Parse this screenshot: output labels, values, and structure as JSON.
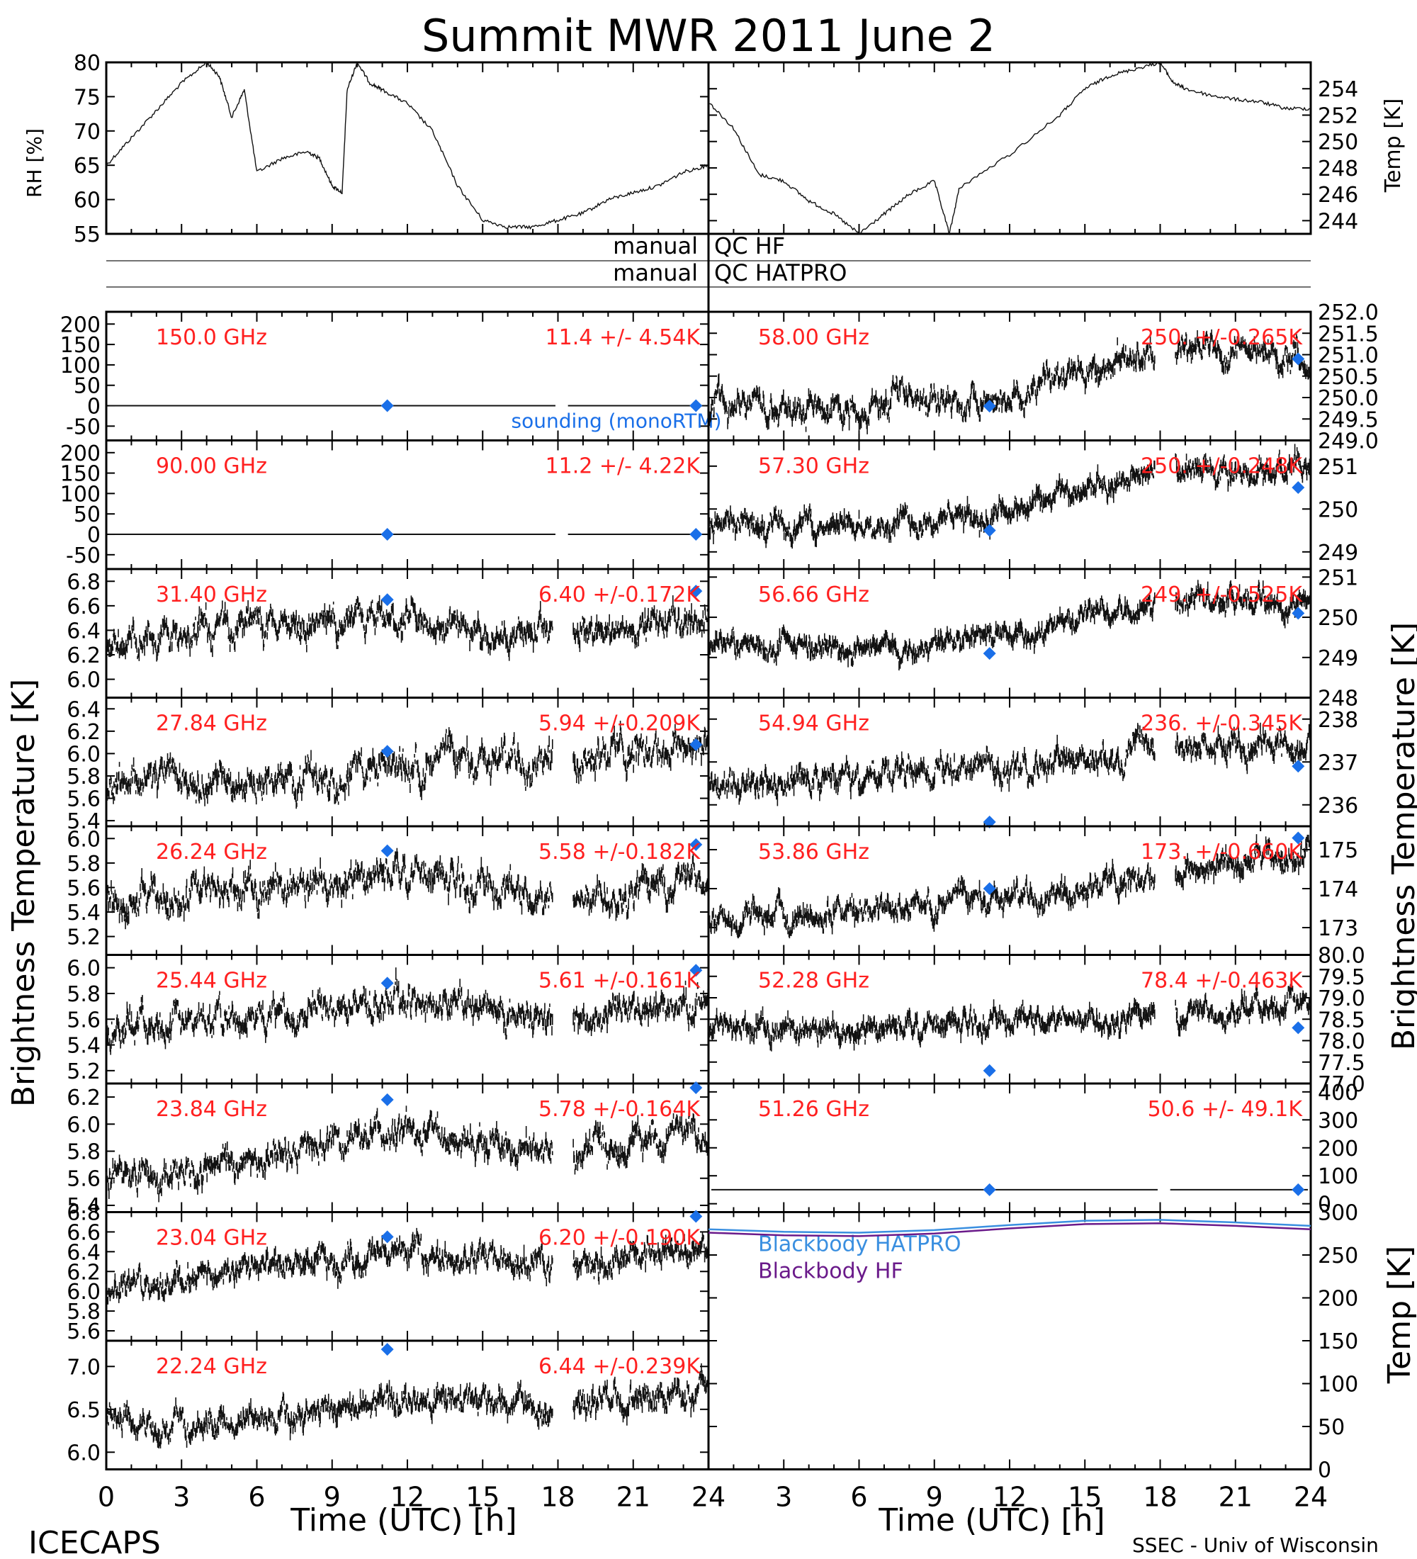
{
  "title": "Summit MWR 2011 June  2",
  "footer": {
    "left": "ICECAPS",
    "right": "SSEC - Univ of Wisconsin"
  },
  "axis_labels": {
    "time": "Time (UTC) [h]",
    "brightness_left": "Brightness Temperature [K]",
    "brightness_right": "Brightness Temperature [K]",
    "rh": "RH [%]",
    "temp_top": "Temp [K]",
    "temp_bottom": "Temp [K]"
  },
  "qc": {
    "left_hf": "manual",
    "right_hf": "QC HF",
    "left_hatpro": "manual",
    "right_hatpro": "QC HATPRO"
  },
  "colors": {
    "label_red": "#ff2020",
    "sounding_blue": "#1a6fe8",
    "hatpro_line": "#3a8fe0",
    "hf_line": "#6a1a8a",
    "data_black": "#111111"
  },
  "chart_data": [
    {
      "type": "scatter",
      "panel": "rh",
      "ylabel": "RH [%]",
      "xlim": [
        0,
        24
      ],
      "ylim": [
        55,
        80
      ],
      "yticks": [
        "55",
        "60",
        "65",
        "70",
        "75",
        "80"
      ],
      "x": [
        0,
        1,
        2,
        3,
        4,
        4.5,
        5,
        5.5,
        6,
        7,
        8,
        8.5,
        9,
        9.4,
        9.6,
        10,
        10.5,
        11,
        12,
        13,
        14,
        15,
        16,
        17,
        18,
        19,
        20,
        21,
        22,
        23,
        24
      ],
      "y": [
        65,
        69,
        73,
        77,
        80,
        78,
        72,
        76,
        64,
        66,
        67,
        66,
        62,
        61,
        76,
        80,
        77,
        76,
        74,
        70,
        62,
        57,
        56,
        56,
        57,
        58,
        60,
        61,
        62,
        64,
        65
      ]
    },
    {
      "type": "scatter",
      "panel": "temp",
      "ylabel": "Temp [K]",
      "xlim": [
        0,
        24
      ],
      "ylim": [
        243,
        256
      ],
      "yticks": [
        "244",
        "246",
        "248",
        "250",
        "252",
        "254"
      ],
      "x": [
        0,
        1,
        2,
        3,
        4,
        5,
        6,
        7,
        8,
        9,
        9.6,
        10,
        12,
        14,
        15,
        16,
        17,
        18,
        18.5,
        19,
        20,
        21,
        22,
        23,
        24
      ],
      "y": [
        253,
        251,
        247.5,
        247,
        245.5,
        244.5,
        243,
        244.5,
        246,
        247,
        243,
        246.5,
        249,
        252,
        254,
        255,
        255.5,
        256,
        254.5,
        254,
        253.5,
        253.2,
        253,
        252.5,
        252.5
      ]
    },
    {
      "type": "scatter",
      "panel": "left",
      "row": 0,
      "label": "150.0 GHz",
      "stat": "11.4 +/-  4.54K",
      "ylim": [
        -85,
        230
      ],
      "yticks": [
        "-50",
        "0",
        "50",
        "100",
        "150",
        "200"
      ],
      "tickvals": [
        -50,
        0,
        50,
        100,
        150,
        200
      ],
      "base": 0,
      "noise": 0,
      "trend": [
        0,
        0,
        0,
        0,
        0
      ],
      "sounding": [
        {
          "x": 11.2,
          "y": 0
        },
        {
          "x": 23.5,
          "y": 0
        }
      ],
      "legend": "sounding (monoRTM)"
    },
    {
      "type": "scatter",
      "panel": "left",
      "row": 1,
      "label": "90.00 GHz",
      "stat": "11.2 +/-  4.22K",
      "ylim": [
        -85,
        230
      ],
      "yticks": [
        "-50",
        "0",
        "50",
        "100",
        "150",
        "200"
      ],
      "tickvals": [
        -50,
        0,
        50,
        100,
        150,
        200
      ],
      "base": 0,
      "noise": 0,
      "trend": [
        0,
        0,
        0,
        0,
        0
      ],
      "sounding": [
        {
          "x": 11.2,
          "y": 0
        },
        {
          "x": 23.5,
          "y": 0
        }
      ]
    },
    {
      "type": "scatter",
      "panel": "left",
      "row": 2,
      "label": "31.40 GHz",
      "stat": "6.40 +/-0.172K",
      "ylim": [
        5.85,
        6.9
      ],
      "yticks": [
        "6.0",
        "6.2",
        "6.4",
        "6.6",
        "6.8"
      ],
      "tickvals": [
        6.0,
        6.2,
        6.4,
        6.6,
        6.8
      ],
      "base": 6.4,
      "noise": 0.14,
      "trend": [
        6.3,
        6.45,
        6.45,
        6.35,
        6.5
      ],
      "sounding": [
        {
          "x": 11.2,
          "y": 6.65
        },
        {
          "x": 23.5,
          "y": 6.72
        }
      ]
    },
    {
      "type": "scatter",
      "panel": "left",
      "row": 3,
      "label": "27.84 GHz",
      "stat": "5.94 +/-0.209K",
      "ylim": [
        5.35,
        6.5
      ],
      "yticks": [
        "5.4",
        "5.6",
        "5.8",
        "6.0",
        "6.2",
        "6.4"
      ],
      "tickvals": [
        5.4,
        5.6,
        5.8,
        6.0,
        6.2,
        6.4
      ],
      "base": 5.94,
      "noise": 0.17,
      "trend": [
        5.8,
        5.75,
        5.9,
        6.0,
        6.1
      ],
      "sounding": [
        {
          "x": 11.2,
          "y": 6.02
        },
        {
          "x": 23.5,
          "y": 6.08
        }
      ]
    },
    {
      "type": "scatter",
      "panel": "left",
      "row": 4,
      "label": "26.24 GHz",
      "stat": "5.58 +/-0.182K",
      "ylim": [
        5.05,
        6.1
      ],
      "yticks": [
        "5.2",
        "5.4",
        "5.6",
        "5.8",
        "6.0"
      ],
      "tickvals": [
        5.2,
        5.4,
        5.6,
        5.8,
        6.0
      ],
      "base": 5.58,
      "noise": 0.15,
      "trend": [
        5.45,
        5.6,
        5.75,
        5.5,
        5.7
      ],
      "sounding": [
        {
          "x": 11.2,
          "y": 5.9
        },
        {
          "x": 23.5,
          "y": 5.95
        }
      ]
    },
    {
      "type": "scatter",
      "panel": "left",
      "row": 5,
      "label": "25.44 GHz",
      "stat": "5.61 +/-0.161K",
      "ylim": [
        5.1,
        6.1
      ],
      "yticks": [
        "5.2",
        "5.4",
        "5.6",
        "5.8",
        "6.0"
      ],
      "tickvals": [
        5.2,
        5.4,
        5.6,
        5.8,
        6.0
      ],
      "base": 5.61,
      "noise": 0.13,
      "trend": [
        5.55,
        5.6,
        5.75,
        5.6,
        5.7
      ],
      "sounding": [
        {
          "x": 11.2,
          "y": 5.88
        },
        {
          "x": 23.5,
          "y": 5.98
        }
      ]
    },
    {
      "type": "scatter",
      "panel": "left",
      "row": 6,
      "label": "23.84 GHz",
      "stat": "5.78 +/-0.164K",
      "ylim": [
        5.35,
        6.3
      ],
      "yticks": [
        "5.4",
        "5.6",
        "5.8",
        "6.0",
        "6.2"
      ],
      "tickvals": [
        5.4,
        5.6,
        5.8,
        6.0,
        6.2
      ],
      "base": 5.78,
      "noise": 0.12,
      "trend": [
        5.6,
        5.75,
        5.95,
        5.8,
        5.95
      ],
      "sounding": [
        {
          "x": 11.2,
          "y": 6.18
        },
        {
          "x": 23.5,
          "y": 6.3
        }
      ]
    },
    {
      "type": "scatter",
      "panel": "left",
      "row": 7,
      "label": "23.04 GHz",
      "stat": "6.20 +/-0.190K",
      "ylim": [
        5.5,
        6.8
      ],
      "yticks": [
        "5.6",
        "5.8",
        "6.0",
        "6.2",
        "6.4",
        "6.6",
        "6.8"
      ],
      "tickvals": [
        5.6,
        5.8,
        6.0,
        6.2,
        6.4,
        6.6,
        6.8
      ],
      "base": 6.2,
      "noise": 0.15,
      "trend": [
        6.05,
        6.2,
        6.4,
        6.25,
        6.45
      ],
      "sounding": [
        {
          "x": 11.2,
          "y": 6.55
        },
        {
          "x": 23.5,
          "y": 6.8
        }
      ]
    },
    {
      "type": "scatter",
      "panel": "left",
      "row": 8,
      "label": "22.24 GHz",
      "stat": "6.44 +/-0.239K",
      "ylim": [
        5.8,
        7.3
      ],
      "yticks": [
        "6.0",
        "6.5",
        "7.0"
      ],
      "tickvals": [
        6.0,
        6.5,
        7.0
      ],
      "base": 6.44,
      "noise": 0.18,
      "trend": [
        6.3,
        6.35,
        6.65,
        6.5,
        6.7
      ],
      "sounding": [
        {
          "x": 11.2,
          "y": 7.2
        }
      ]
    },
    {
      "type": "scatter",
      "panel": "right",
      "row": 0,
      "label": "58.00 GHz",
      "stat": "250. +/-0.265K",
      "ylim": [
        249.0,
        252.0
      ],
      "yticks": [
        "249.0",
        "249.5",
        "250.0",
        "250.5",
        "251.0",
        "251.5",
        "252.0"
      ],
      "tickvals": [
        249.0,
        249.5,
        250.0,
        250.5,
        251.0,
        251.5,
        252.0
      ],
      "base": 250.0,
      "noise": 0.35,
      "trend": [
        249.9,
        249.8,
        250.0,
        251.2,
        251.0
      ],
      "sounding": [
        {
          "x": 11.2,
          "y": 249.8
        },
        {
          "x": 23.5,
          "y": 250.9
        }
      ]
    },
    {
      "type": "scatter",
      "panel": "right",
      "row": 1,
      "label": "57.30 GHz",
      "stat": "250. +/-0.248K",
      "ylim": [
        248.6,
        251.6
      ],
      "yticks": [
        "249",
        "250",
        "251"
      ],
      "tickvals": [
        249,
        250,
        251
      ],
      "base": 250.0,
      "noise": 0.3,
      "trend": [
        249.7,
        249.6,
        249.9,
        250.9,
        250.9
      ],
      "sounding": [
        {
          "x": 11.2,
          "y": 249.5
        },
        {
          "x": 23.5,
          "y": 250.5
        }
      ]
    },
    {
      "type": "scatter",
      "panel": "right",
      "row": 2,
      "label": "56.66 GHz",
      "stat": "249. +/-0.525K",
      "ylim": [
        248.0,
        251.2
      ],
      "yticks": [
        "248",
        "249",
        "250",
        "251"
      ],
      "tickvals": [
        248,
        249,
        250,
        251
      ],
      "base": 249.5,
      "noise": 0.3,
      "trend": [
        249.3,
        249.2,
        249.5,
        250.5,
        250.4
      ],
      "sounding": [
        {
          "x": 11.2,
          "y": 249.1
        },
        {
          "x": 23.5,
          "y": 250.1
        }
      ]
    },
    {
      "type": "scatter",
      "panel": "right",
      "row": 3,
      "label": "54.94 GHz",
      "stat": "236. +/-0.345K",
      "ylim": [
        235.5,
        238.5
      ],
      "yticks": [
        "236",
        "237",
        "238"
      ],
      "tickvals": [
        236,
        237,
        238
      ],
      "base": 236.7,
      "noise": 0.35,
      "trend": [
        236.5,
        236.6,
        236.9,
        237.3,
        237.5
      ],
      "sounding": [
        {
          "x": 11.2,
          "y": 235.6
        },
        {
          "x": 23.5,
          "y": 236.9
        }
      ]
    },
    {
      "type": "scatter",
      "panel": "right",
      "row": 4,
      "label": "53.86 GHz",
      "stat": "173. +/-0.660K",
      "ylim": [
        172.3,
        175.6
      ],
      "yticks": [
        "173",
        "174",
        "175"
      ],
      "tickvals": [
        173,
        174,
        175
      ],
      "base": 173.6,
      "noise": 0.35,
      "trend": [
        173.2,
        173.4,
        173.8,
        174.4,
        174.9
      ],
      "sounding": [
        {
          "x": 11.2,
          "y": 174.0
        },
        {
          "x": 23.5,
          "y": 175.3
        }
      ]
    },
    {
      "type": "scatter",
      "panel": "right",
      "row": 5,
      "label": "52.28 GHz",
      "stat": "78.4 +/-0.463K",
      "ylim": [
        77.0,
        80.0
      ],
      "yticks": [
        "77.0",
        "77.5",
        "78.0",
        "78.5",
        "79.0",
        "79.5",
        "80.0"
      ],
      "tickvals": [
        77.0,
        77.5,
        78.0,
        78.5,
        79.0,
        79.5,
        80.0
      ],
      "base": 78.4,
      "noise": 0.3,
      "trend": [
        78.3,
        78.3,
        78.5,
        78.6,
        78.9
      ],
      "sounding": [
        {
          "x": 11.2,
          "y": 77.3
        },
        {
          "x": 23.5,
          "y": 78.3
        }
      ]
    },
    {
      "type": "scatter",
      "panel": "right",
      "row": 6,
      "label": "51.26 GHz",
      "stat": "50.6 +/-  49.1K",
      "ylim": [
        -30,
        430
      ],
      "yticks": [
        "0",
        "100",
        "200",
        "300",
        "400"
      ],
      "tickvals": [
        0,
        100,
        200,
        300,
        400
      ],
      "base": 50,
      "noise": 0,
      "trend": [
        50,
        50,
        50,
        50,
        50
      ],
      "sounding": [
        {
          "x": 11.2,
          "y": 50
        },
        {
          "x": 23.5,
          "y": 50
        }
      ]
    },
    {
      "type": "line",
      "panel": "right",
      "row": 7,
      "span": 2,
      "ylabel": "Temp [K]",
      "ylim": [
        0,
        300
      ],
      "yticks": [
        "0",
        "50",
        "100",
        "150",
        "200",
        "250",
        "300"
      ],
      "tickvals": [
        0,
        50,
        100,
        150,
        200,
        250,
        300
      ],
      "series": [
        {
          "name": "Blackbody HATPRO",
          "x": [
            0,
            3,
            6,
            9,
            12,
            15,
            18,
            21,
            24
          ],
          "y": [
            280,
            277,
            276,
            279,
            285,
            290,
            291,
            288,
            284
          ]
        },
        {
          "name": "Blackbody HF",
          "x": [
            0,
            3,
            6,
            9,
            12,
            15,
            18,
            21,
            24
          ],
          "y": [
            276,
            273,
            272,
            275,
            281,
            286,
            287,
            284,
            280
          ]
        }
      ]
    }
  ],
  "xticks": [
    "0",
    "3",
    "6",
    "9",
    "12",
    "15",
    "18",
    "21",
    "24"
  ]
}
